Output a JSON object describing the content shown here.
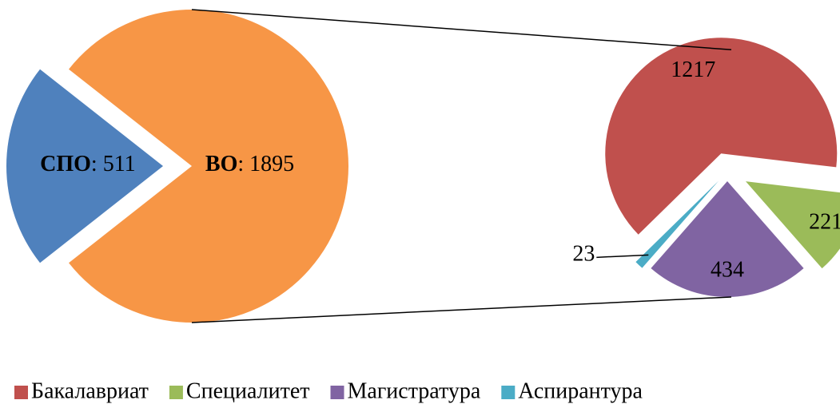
{
  "chart_data": [
    {
      "type": "pie",
      "categories": [
        "СПО",
        "ВО"
      ],
      "values": [
        511,
        1895
      ],
      "colors": [
        "#4f81bd",
        "#f79646"
      ],
      "label_separator": ":"
    },
    {
      "type": "pie",
      "categories": [
        "Бакалавриат",
        "Специалитет",
        "Магистратура",
        "Аспирантура"
      ],
      "values": [
        1217,
        221,
        434,
        23
      ],
      "colors": [
        "#c0504d",
        "#9bbb59",
        "#8064a2",
        "#4bacc6"
      ],
      "legend": "bottom"
    }
  ]
}
